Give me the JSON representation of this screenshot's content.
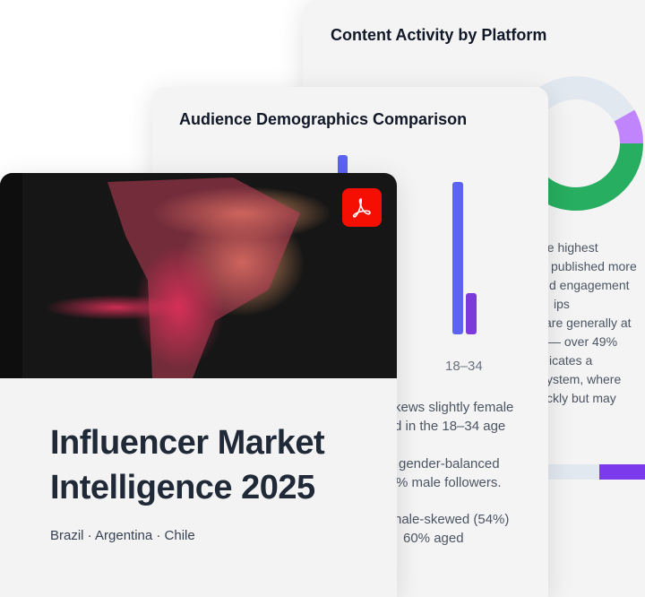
{
  "back_card": {
    "title": "Content Activity by Platform",
    "text_lines": [
      "he highest",
      "published more",
      "d engagement",
      "ips",
      "are generally at",
      "— over 49%",
      "icates a",
      "ystem, where",
      "ckly but may"
    ],
    "donut_colors": {
      "track": "#e2e8f0",
      "purple": "#c084fc",
      "green": "#27ae60"
    },
    "bar_colors": [
      "#e2e8f0",
      "#7c3aed"
    ]
  },
  "middle_card": {
    "title": "Audience Demographics Comparison",
    "bar_label": "18–34",
    "bar_colors": {
      "primary": "#5b63f0",
      "secondary": "#7c3ada"
    },
    "text_lines": [
      "kews slightly female",
      "d in the 18–34 age",
      "gender-balanced",
      "% male followers.",
      "nale-skewed (54%)",
      "60% aged"
    ]
  },
  "front_card": {
    "title_line1": "Influencer Market",
    "title_line2": "Intelligence 2025",
    "subtitle": "Brazil · Argentina · Chile",
    "icon": "pdf-icon",
    "icon_color": "#f40f02"
  }
}
